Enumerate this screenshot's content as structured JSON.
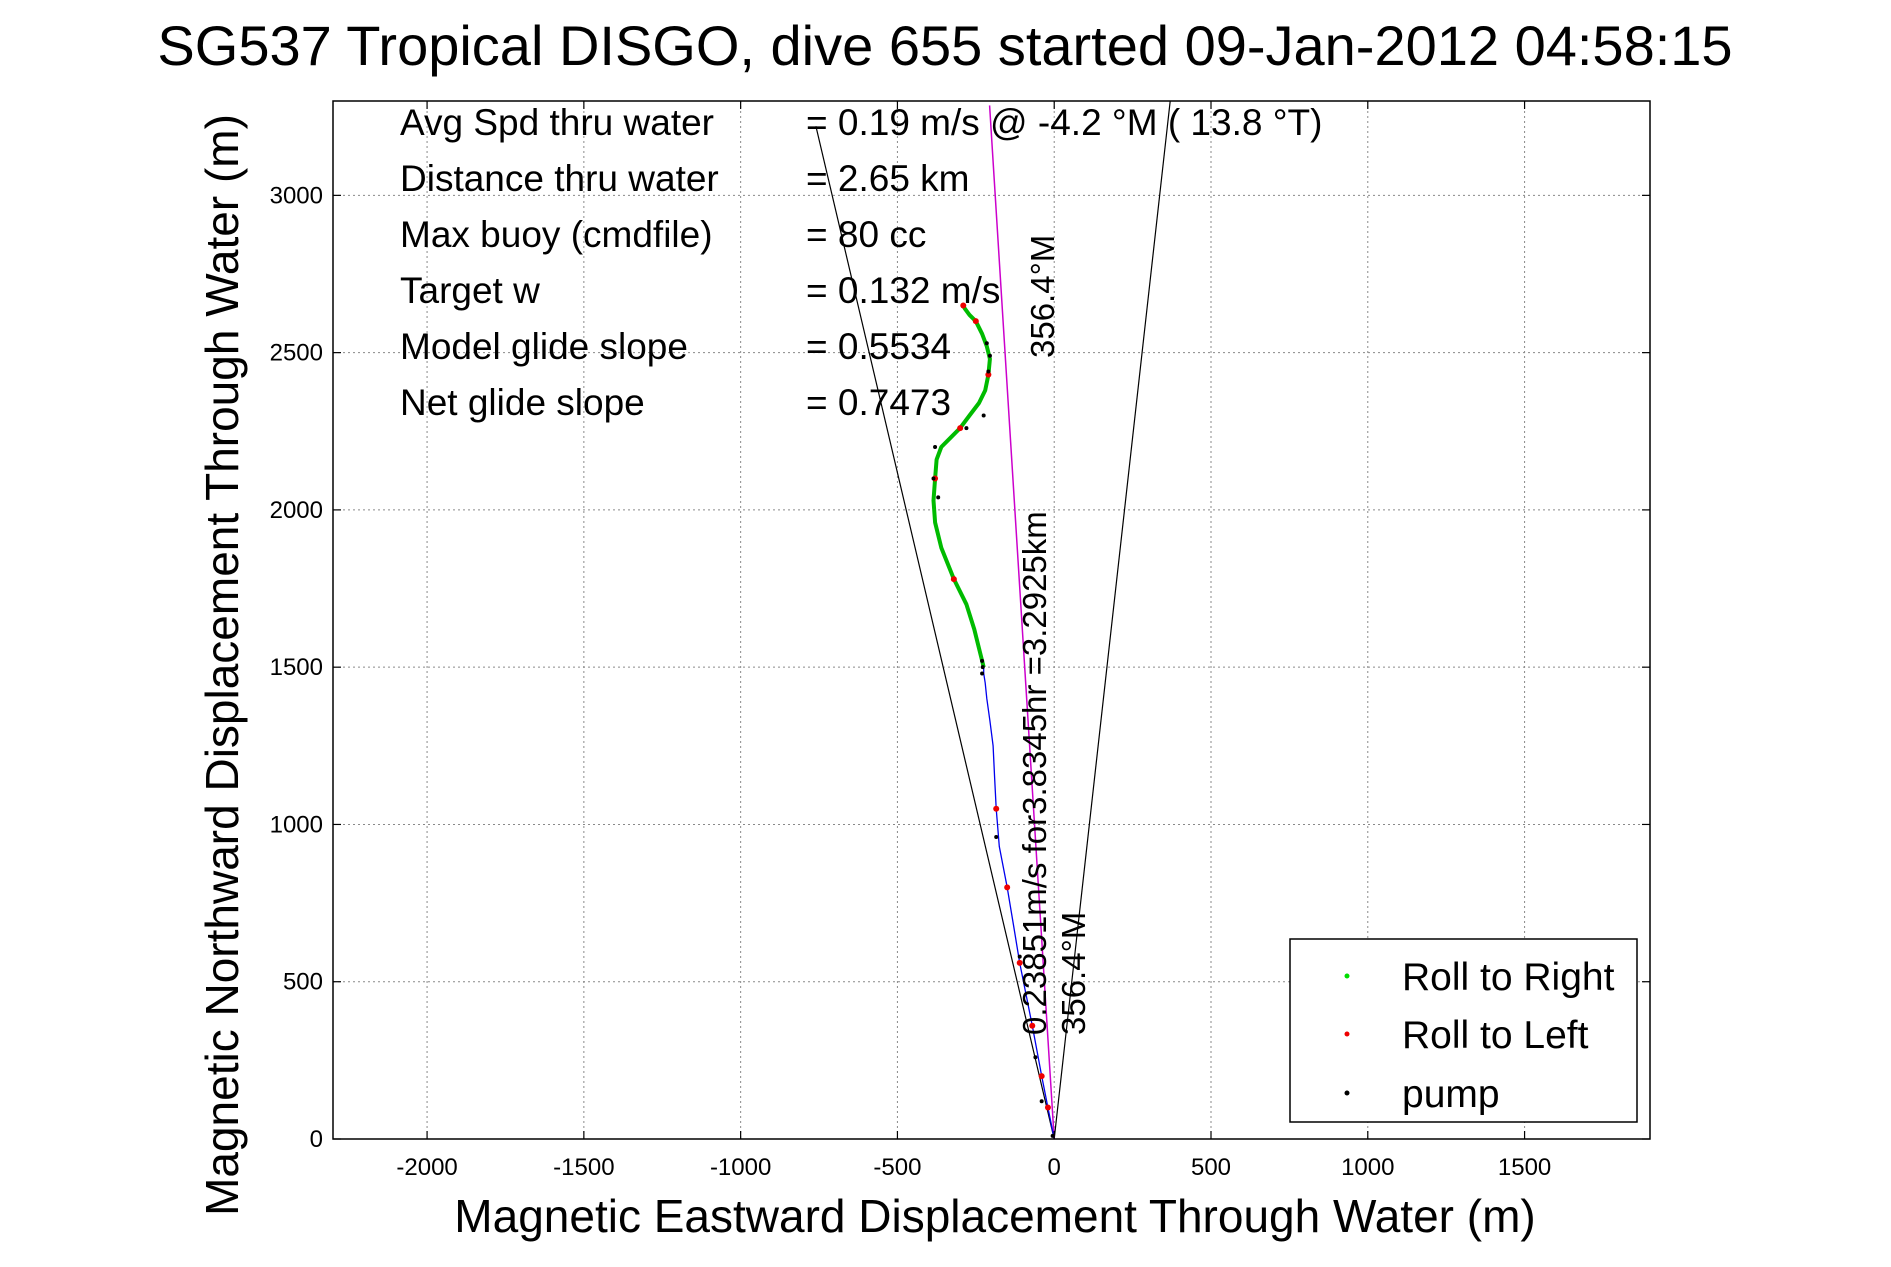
{
  "chart_data": {
    "type": "line",
    "title": "SG537 Tropical DISGO, dive 655 started 09-Jan-2012 04:58:15",
    "xlabel": "Magnetic Eastward Displacement Through Water (m)",
    "ylabel": "Magnetic Northward Displacement Through Water (m)",
    "xlim": [
      -2300,
      1900
    ],
    "ylim": [
      0,
      3300
    ],
    "xticks": [
      -2000,
      -1500,
      -1000,
      -500,
      0,
      500,
      1000,
      1500
    ],
    "yticks": [
      0,
      500,
      1000,
      1500,
      2000,
      2500,
      3000
    ],
    "grid": true,
    "legend_position": "lower-right",
    "stats": [
      {
        "label": "Avg Spd thru water",
        "value": "=  0.19 m/s @  -4.2 °M ( 13.8 °T)"
      },
      {
        "label": "Distance thru water",
        "value": "=  2.65 km"
      },
      {
        "label": "Max buoy (cmdfile)",
        "value": "= 80 cc"
      },
      {
        "label": "Target w",
        "value": "= 0.132 m/s"
      },
      {
        "label": "Model glide slope",
        "value": "= 0.5534"
      },
      {
        "label": "Net glide slope",
        "value": "= 0.7473"
      }
    ],
    "annotations": {
      "current_vector": "0.23851m/s for3.8345hr =3.2925km",
      "heading_near": "356.4°M",
      "heading_far": "356.4°M"
    },
    "series": [
      {
        "name": "Roll to Right",
        "color": "#00dd00"
      },
      {
        "name": "Roll to Left",
        "color": "#ee0000"
      },
      {
        "name": "pump",
        "color": "#000000"
      }
    ],
    "track": {
      "color": "#0000ee",
      "x": [
        0,
        -10,
        -20,
        -30,
        -40,
        -55,
        -70,
        -90,
        -110,
        -130,
        -150,
        -175,
        -185,
        -190,
        -195,
        -205,
        -215,
        -220,
        -225,
        -225
      ],
      "y": [
        0,
        50,
        100,
        150,
        200,
        280,
        360,
        460,
        560,
        680,
        800,
        930,
        1050,
        1150,
        1250,
        1330,
        1400,
        1450,
        1480,
        1500
      ]
    },
    "green_track": {
      "color": "#00bb00",
      "x": [
        -225,
        -240,
        -255,
        -280,
        -320,
        -360,
        -380,
        -385,
        -380,
        -375,
        -360,
        -330,
        -300,
        -270,
        -240,
        -220,
        -210,
        -205,
        -215,
        -230,
        -250,
        -270,
        -285,
        -290
      ],
      "y": [
        1500,
        1560,
        1620,
        1700,
        1780,
        1880,
        1960,
        2030,
        2100,
        2160,
        2200,
        2230,
        2260,
        2300,
        2340,
        2380,
        2430,
        2480,
        2520,
        2560,
        2600,
        2620,
        2640,
        2650
      ]
    },
    "pump_points": {
      "x": [
        -5,
        -40,
        -60,
        -110,
        -185,
        -230,
        -228,
        -230,
        -370,
        -385,
        -380,
        -280,
        -225,
        -210,
        -205,
        -215
      ],
      "y": [
        10,
        120,
        260,
        580,
        960,
        1480,
        1500,
        1520,
        2040,
        2100,
        2200,
        2260,
        2300,
        2440,
        2490,
        2530
      ]
    },
    "current_line": {
      "color": "#cc00cc",
      "x": [
        0,
        -206
      ],
      "y": [
        0,
        3286
      ]
    },
    "heading_lines": {
      "color": "#000000",
      "left": {
        "x": [
          0,
          -760
        ],
        "y": [
          0,
          3220
        ]
      },
      "right": {
        "x": [
          0,
          370
        ],
        "y": [
          0,
          3300
        ]
      }
    }
  }
}
